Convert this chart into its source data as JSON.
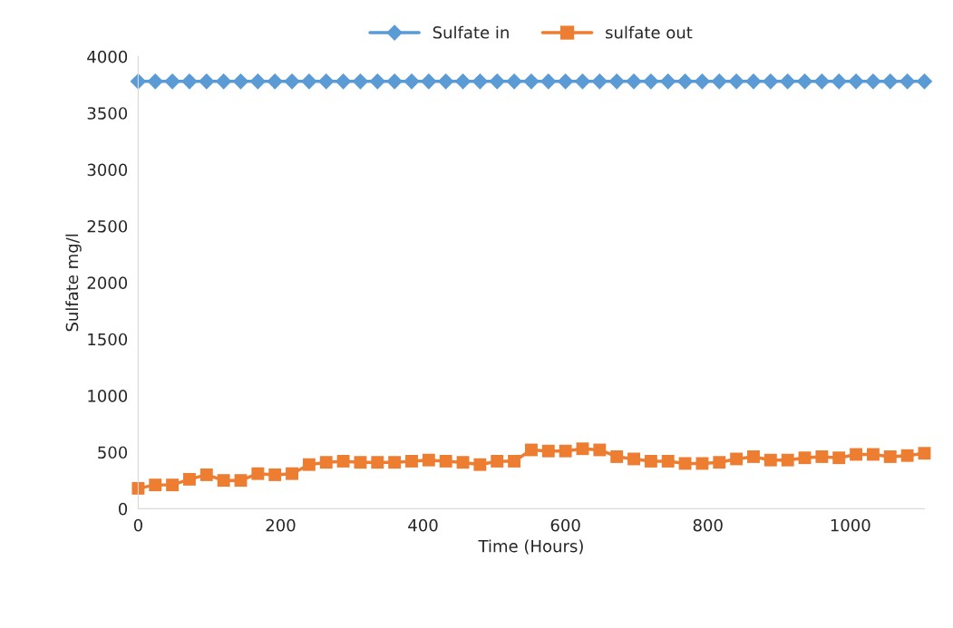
{
  "chart_data": {
    "type": "line",
    "xlabel": "Time (Hours)",
    "ylabel": "Sulfate mg/l",
    "x": [
      0,
      24,
      48,
      72,
      96,
      120,
      144,
      168,
      192,
      216,
      240,
      264,
      288,
      312,
      336,
      360,
      384,
      408,
      432,
      456,
      480,
      504,
      528,
      552,
      576,
      600,
      624,
      648,
      672,
      696,
      720,
      744,
      768,
      792,
      816,
      840,
      864,
      888,
      912,
      936,
      960,
      984,
      1008,
      1032,
      1056,
      1080,
      1104
    ],
    "series": [
      {
        "name": "Sulfate in",
        "color": "#5b9bd5",
        "marker": "diamond",
        "values": [
          3780,
          3780,
          3780,
          3780,
          3780,
          3780,
          3780,
          3780,
          3780,
          3780,
          3780,
          3780,
          3780,
          3780,
          3780,
          3780,
          3780,
          3780,
          3780,
          3780,
          3780,
          3780,
          3780,
          3780,
          3780,
          3780,
          3780,
          3780,
          3780,
          3780,
          3780,
          3780,
          3780,
          3780,
          3780,
          3780,
          3780,
          3780,
          3780,
          3780,
          3780,
          3780,
          3780,
          3780,
          3780,
          3780,
          3780
        ]
      },
      {
        "name": "sulfate out",
        "color": "#ed7d31",
        "marker": "square",
        "values": [
          180,
          210,
          210,
          260,
          300,
          250,
          250,
          310,
          300,
          310,
          390,
          410,
          420,
          410,
          410,
          410,
          420,
          430,
          420,
          410,
          390,
          420,
          420,
          520,
          510,
          510,
          530,
          520,
          460,
          440,
          420,
          420,
          400,
          400,
          410,
          440,
          460,
          430,
          430,
          450,
          460,
          450,
          480,
          480,
          460,
          470,
          490
        ]
      }
    ],
    "xlim": [
      0,
      1104
    ],
    "xticks": [
      0,
      200,
      400,
      600,
      800,
      1000
    ],
    "ylim": [
      0,
      4000
    ],
    "yticks": [
      0,
      500,
      1000,
      1500,
      2000,
      2500,
      3000,
      3500,
      4000
    ],
    "grid": false,
    "legend": "top",
    "line_style": "solid"
  }
}
